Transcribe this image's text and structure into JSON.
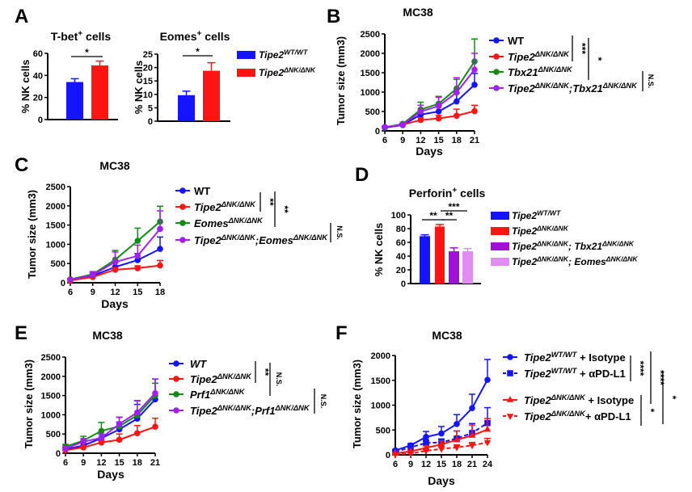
{
  "panel_letters": [
    "A",
    "B",
    "C",
    "D",
    "E",
    "F"
  ],
  "colors": {
    "blue": "#1414ff",
    "red": "#ff1414",
    "green": "#138a13",
    "purple": "#a020f0",
    "dark_purple": "#a010d8",
    "light_purple": "#e08cf0"
  },
  "chart_data": [
    {
      "id": "A1",
      "type": "bar",
      "title": [
        {
          "t": "T-bet"
        },
        {
          "t": "+",
          "sup": true
        },
        {
          "t": " cells"
        }
      ],
      "ylabel": "% NK cells",
      "ylim": [
        0,
        60
      ],
      "yticks": [
        "0",
        "20",
        "40",
        "60"
      ],
      "categories": [
        "Tipe2 WT/WT",
        "Tipe2 ΔNK/ΔNK"
      ],
      "values": [
        34,
        49
      ],
      "sem": [
        3,
        4
      ],
      "bar_colors": [
        "#1414ff",
        "#ff1414"
      ],
      "significance": [
        {
          "text": "*",
          "between": [
            0,
            1
          ]
        }
      ]
    },
    {
      "id": "A2",
      "type": "bar",
      "title": [
        {
          "t": "Eomes"
        },
        {
          "t": "+",
          "sup": true
        },
        {
          "t": " cells"
        }
      ],
      "ylabel": "% NK cells",
      "ylim": [
        0,
        25
      ],
      "yticks": [
        "0",
        "5",
        "10",
        "15",
        "20",
        "25"
      ],
      "categories": [
        "Tipe2 WT/WT",
        "Tipe2 ΔNK/ΔNK"
      ],
      "values": [
        9.7,
        18.8
      ],
      "sem": [
        1.5,
        3
      ],
      "bar_colors": [
        "#1414ff",
        "#ff1414"
      ],
      "significance": [
        {
          "text": "*",
          "between": [
            0,
            1
          ]
        }
      ],
      "legend": [
        {
          "color": "#1414ff",
          "parts": [
            {
              "t": "Tipe2",
              "i": true
            },
            {
              "t": "WT/WT",
              "sup": true,
              "i": true
            }
          ]
        },
        {
          "color": "#ff1414",
          "parts": [
            {
              "t": "Tipe2",
              "i": true
            },
            {
              "t": "ΔNK/ΔNK",
              "sup": true,
              "i": true
            }
          ]
        }
      ]
    },
    {
      "id": "B",
      "type": "line",
      "title": [
        {
          "t": "MC38"
        }
      ],
      "xlabel": "Days",
      "ylabel": "Tumor size (mm3)",
      "ylim": [
        0,
        2500
      ],
      "yticks": [
        "0",
        "500",
        "1000",
        "1500",
        "2000",
        "2500"
      ],
      "x": [
        6,
        9,
        12,
        15,
        18,
        21
      ],
      "xticks": [
        "6",
        "9",
        "12",
        "15",
        "18",
        "21"
      ],
      "series": [
        {
          "color": "#1414ff",
          "marker": "circle",
          "values": [
            80,
            150,
            420,
            500,
            760,
            1190
          ],
          "sem": [
            20,
            30,
            130,
            150,
            220,
            290
          ],
          "legend": [
            {
              "t": "WT"
            }
          ]
        },
        {
          "color": "#ff1414",
          "marker": "circle",
          "values": [
            90,
            160,
            280,
            320,
            390,
            510
          ],
          "sem": [
            20,
            30,
            60,
            80,
            170,
            150
          ],
          "legend": [
            {
              "t": "Tipe2",
              "i": true
            },
            {
              "t": "ΔNK/ΔNK",
              "sup": true,
              "i": true
            }
          ]
        },
        {
          "color": "#138a13",
          "marker": "circle",
          "values": [
            90,
            180,
            550,
            700,
            1090,
            1790
          ],
          "sem": [
            20,
            30,
            190,
            190,
            240,
            580
          ],
          "legend": [
            {
              "t": "Tbx21",
              "i": true
            },
            {
              "t": "ΔNK/ΔNK",
              "sup": true,
              "i": true
            }
          ]
        },
        {
          "color": "#a020f0",
          "marker": "circle",
          "values": [
            100,
            160,
            500,
            640,
            990,
            1580
          ],
          "sem": [
            20,
            30,
            160,
            230,
            380,
            420
          ],
          "legend": [
            {
              "t": "Tipe2",
              "i": true
            },
            {
              "t": "ΔNK/ΔNK",
              "sup": true,
              "i": true
            },
            {
              "t": ";",
              "i": true
            },
            {
              "t": "Tbx21",
              "i": true
            },
            {
              "t": "ΔNK/ΔNK",
              "sup": true,
              "i": true
            }
          ]
        }
      ],
      "significance": [
        {
          "text": "***",
          "between": [
            0,
            1
          ]
        },
        {
          "text": "*",
          "between": [
            0,
            2
          ]
        },
        {
          "text": "N.S.",
          "between": [
            3,
            3
          ]
        }
      ]
    },
    {
      "id": "C",
      "type": "line",
      "title": [
        {
          "t": "MC38"
        }
      ],
      "xlabel": "Days",
      "ylabel": "Tumor size (mm3)",
      "ylim": [
        0,
        2500
      ],
      "yticks": [
        "0",
        "500",
        "1000",
        "1500",
        "2000",
        "2500"
      ],
      "x": [
        6,
        9,
        12,
        15,
        18
      ],
      "xticks": [
        "6",
        "9",
        "12",
        "15",
        "18"
      ],
      "series": [
        {
          "color": "#1414ff",
          "marker": "circle",
          "values": [
            70,
            180,
            410,
            590,
            880
          ],
          "sem": [
            15,
            40,
            110,
            170,
            310
          ],
          "legend": [
            {
              "t": "WT"
            }
          ]
        },
        {
          "color": "#ff1414",
          "marker": "circle",
          "values": [
            60,
            150,
            340,
            380,
            450
          ],
          "sem": [
            15,
            30,
            50,
            60,
            130
          ],
          "legend": [
            {
              "t": "Tipe2",
              "i": true
            },
            {
              "t": "ΔNK/ΔNK",
              "sup": true,
              "i": true
            }
          ]
        },
        {
          "color": "#138a13",
          "marker": "circle",
          "values": [
            90,
            220,
            600,
            1090,
            1590
          ],
          "sem": [
            20,
            50,
            240,
            330,
            400
          ],
          "legend": [
            {
              "t": "Eomes",
              "i": true
            },
            {
              "t": "ΔNK/ΔNK",
              "sup": true,
              "i": true
            }
          ]
        },
        {
          "color": "#a020f0",
          "marker": "circle",
          "values": [
            80,
            200,
            540,
            700,
            1400
          ],
          "sem": [
            20,
            90,
            260,
            280,
            470
          ],
          "legend": [
            {
              "t": "Tipe2",
              "i": true
            },
            {
              "t": "ΔNK/ΔNK",
              "sup": true,
              "i": true
            },
            {
              "t": ";",
              "i": true
            },
            {
              "t": "Eomes",
              "i": true
            },
            {
              "t": "ΔNK/ΔNK",
              "sup": true,
              "i": true
            }
          ]
        }
      ],
      "significance": [
        {
          "text": "**",
          "between": [
            0,
            1
          ]
        },
        {
          "text": "**",
          "between": [
            0,
            2
          ]
        },
        {
          "text": "N.S.",
          "between": [
            3,
            3
          ]
        }
      ]
    },
    {
      "id": "D",
      "type": "bar",
      "title": [
        {
          "t": "Perforin"
        },
        {
          "t": "+",
          "sup": true
        },
        {
          "t": " cells"
        }
      ],
      "ylabel": "% NK cells",
      "ylim": [
        0,
        100
      ],
      "yticks": [
        "0",
        "20",
        "40",
        "60",
        "80",
        "100"
      ],
      "categories": [
        "Tipe2 WT/WT",
        "Tipe2 ΔNK/ΔNK",
        "Tipe2 ΔNK/ΔNK; Tbx21 ΔNK/ΔNK",
        "Tipe2 ΔNK/ΔNK; Eomes ΔNK/ΔNK"
      ],
      "values": [
        69,
        83,
        47,
        47
      ],
      "sem": [
        2,
        3,
        5,
        4
      ],
      "bar_colors": [
        "#1414ff",
        "#ff1414",
        "#a010d8",
        "#e08cf0"
      ],
      "significance": [
        {
          "text": "**",
          "between": [
            0,
            1
          ]
        },
        {
          "text": "**",
          "between": [
            1,
            2
          ]
        },
        {
          "text": "***",
          "between": [
            1,
            3
          ]
        }
      ],
      "legend": [
        {
          "color": "#1414ff",
          "parts": [
            {
              "t": "Tipe2",
              "i": true
            },
            {
              "t": "WT/WT",
              "sup": true,
              "i": true
            }
          ]
        },
        {
          "color": "#ff1414",
          "parts": [
            {
              "t": "Tipe2",
              "i": true
            },
            {
              "t": "ΔNK/ΔNK",
              "sup": true,
              "i": true
            }
          ]
        },
        {
          "color": "#a010d8",
          "parts": [
            {
              "t": "Tipe2",
              "i": true
            },
            {
              "t": "ΔNK/ΔNK",
              "sup": true,
              "i": true
            },
            {
              "t": "; ",
              "i": true
            },
            {
              "t": "Tbx21",
              "i": true
            },
            {
              "t": "ΔNK/ΔNK",
              "sup": true,
              "i": true
            }
          ]
        },
        {
          "color": "#e08cf0",
          "parts": [
            {
              "t": "Tipe2",
              "i": true
            },
            {
              "t": "ΔNK/ΔNK",
              "sup": true,
              "i": true
            },
            {
              "t": "; ",
              "i": true
            },
            {
              "t": "Eomes",
              "i": true
            },
            {
              "t": "ΔNK/ΔNK",
              "sup": true,
              "i": true
            }
          ]
        }
      ]
    },
    {
      "id": "E",
      "type": "line",
      "title": [
        {
          "t": "MC38"
        }
      ],
      "xlabel": "Days",
      "ylabel": "Tumor size (mm3)",
      "ylim": [
        0,
        2500
      ],
      "yticks": [
        "0",
        "500",
        "1000",
        "1500",
        "2000",
        "2500"
      ],
      "x": [
        6,
        9,
        12,
        15,
        18,
        21
      ],
      "xticks": [
        "6",
        "9",
        "12",
        "15",
        "18",
        "21"
      ],
      "series": [
        {
          "color": "#1414ff",
          "marker": "circle",
          "values": [
            100,
            200,
            390,
            620,
            900,
            1400
          ],
          "sem": [
            30,
            60,
            100,
            190,
            370,
            530
          ],
          "legend": [
            {
              "t": "WT",
              "i": true
            }
          ]
        },
        {
          "color": "#ff1414",
          "marker": "circle",
          "values": [
            80,
            150,
            280,
            350,
            520,
            690
          ],
          "sem": [
            20,
            40,
            50,
            150,
            200,
            220
          ],
          "legend": [
            {
              "t": "Tipe2",
              "i": true
            },
            {
              "t": "ΔNK/ΔNK",
              "sup": true,
              "i": true
            }
          ]
        },
        {
          "color": "#138a13",
          "marker": "circle",
          "values": [
            170,
            330,
            580,
            700,
            990,
            1500
          ],
          "sem": [
            60,
            110,
            220,
            230,
            380,
            320
          ],
          "legend": [
            {
              "t": "Prf1",
              "i": true
            },
            {
              "t": "ΔNK/ΔNK",
              "sup": true,
              "i": true
            }
          ]
        },
        {
          "color": "#a020f0",
          "marker": "circle",
          "values": [
            120,
            300,
            400,
            760,
            1060,
            1560
          ],
          "sem": [
            40,
            80,
            100,
            180,
            300,
            370
          ],
          "legend": [
            {
              "t": "Tipe2",
              "i": true
            },
            {
              "t": "ΔNK/ΔNK",
              "sup": true,
              "i": true
            },
            {
              "t": ";",
              "i": true
            },
            {
              "t": "Prf1",
              "i": true
            },
            {
              "t": "ΔNK/ΔNK",
              "sup": true,
              "i": true
            }
          ]
        }
      ],
      "significance": [
        {
          "text": "**",
          "between": [
            0,
            1
          ]
        },
        {
          "text": "N.S.",
          "between": [
            0,
            2
          ]
        },
        {
          "text": "N.S.",
          "between": [
            3,
            3
          ]
        }
      ]
    },
    {
      "id": "F",
      "type": "line",
      "title": [
        {
          "t": "MC38"
        }
      ],
      "xlabel": "Days",
      "ylabel": "Tumor size (mm3)",
      "ylim": [
        0,
        2000
      ],
      "yticks": [
        "0",
        "500",
        "1000",
        "1500",
        "2000"
      ],
      "x": [
        6,
        9,
        12,
        15,
        18,
        21,
        24
      ],
      "xticks": [
        "6",
        "9",
        "12",
        "15",
        "18",
        "21",
        "24"
      ],
      "series": [
        {
          "color": "#1414ff",
          "marker": "circle",
          "dashed": false,
          "values": [
            90,
            190,
            360,
            430,
            620,
            940,
            1510
          ],
          "sem": [
            20,
            40,
            110,
            140,
            190,
            280,
            410
          ],
          "legend": [
            {
              "t": "Tipe2",
              "i": true
            },
            {
              "t": "WT/WT",
              "sup": true,
              "i": true
            },
            {
              "t": " + Isotype"
            }
          ]
        },
        {
          "color": "#1414ff",
          "marker": "square",
          "dashed": true,
          "values": [
            60,
            150,
            240,
            250,
            330,
            440,
            640
          ],
          "sem": [
            20,
            40,
            60,
            70,
            150,
            190,
            310
          ],
          "legend": [
            {
              "t": "Tipe2",
              "i": true
            },
            {
              "t": "WT/WT",
              "sup": true,
              "i": true
            },
            {
              "t": " + αPD-L1"
            }
          ]
        },
        {
          "color": "#ff1414",
          "marker": "triangle",
          "dashed": false,
          "values": [
            30,
            70,
            140,
            210,
            300,
            390,
            510
          ],
          "sem": [
            10,
            20,
            40,
            70,
            180,
            210,
            220
          ],
          "legend": [
            {
              "t": "Tipe2",
              "i": true
            },
            {
              "t": "ΔNK/ΔNK",
              "sup": true,
              "i": true
            },
            {
              "t": " + Isotype"
            }
          ]
        },
        {
          "color": "#ff1414",
          "marker": "triangle-down",
          "dashed": true,
          "values": [
            10,
            30,
            80,
            120,
            150,
            190,
            250
          ],
          "sem": [
            5,
            10,
            30,
            40,
            50,
            60,
            80
          ],
          "legend": [
            {
              "t": "Tipe2",
              "i": true
            },
            {
              "t": "ΔNK/ΔNK",
              "sup": true,
              "i": true
            },
            {
              "t": "+ αPD-L1"
            }
          ]
        }
      ],
      "significance": [
        {
          "text": "****",
          "between": [
            0,
            1
          ]
        },
        {
          "text": "****",
          "between": [
            0,
            2
          ]
        },
        {
          "text": "*",
          "between": [
            1,
            3
          ]
        },
        {
          "text": "*",
          "between": [
            2,
            3
          ]
        }
      ]
    }
  ]
}
